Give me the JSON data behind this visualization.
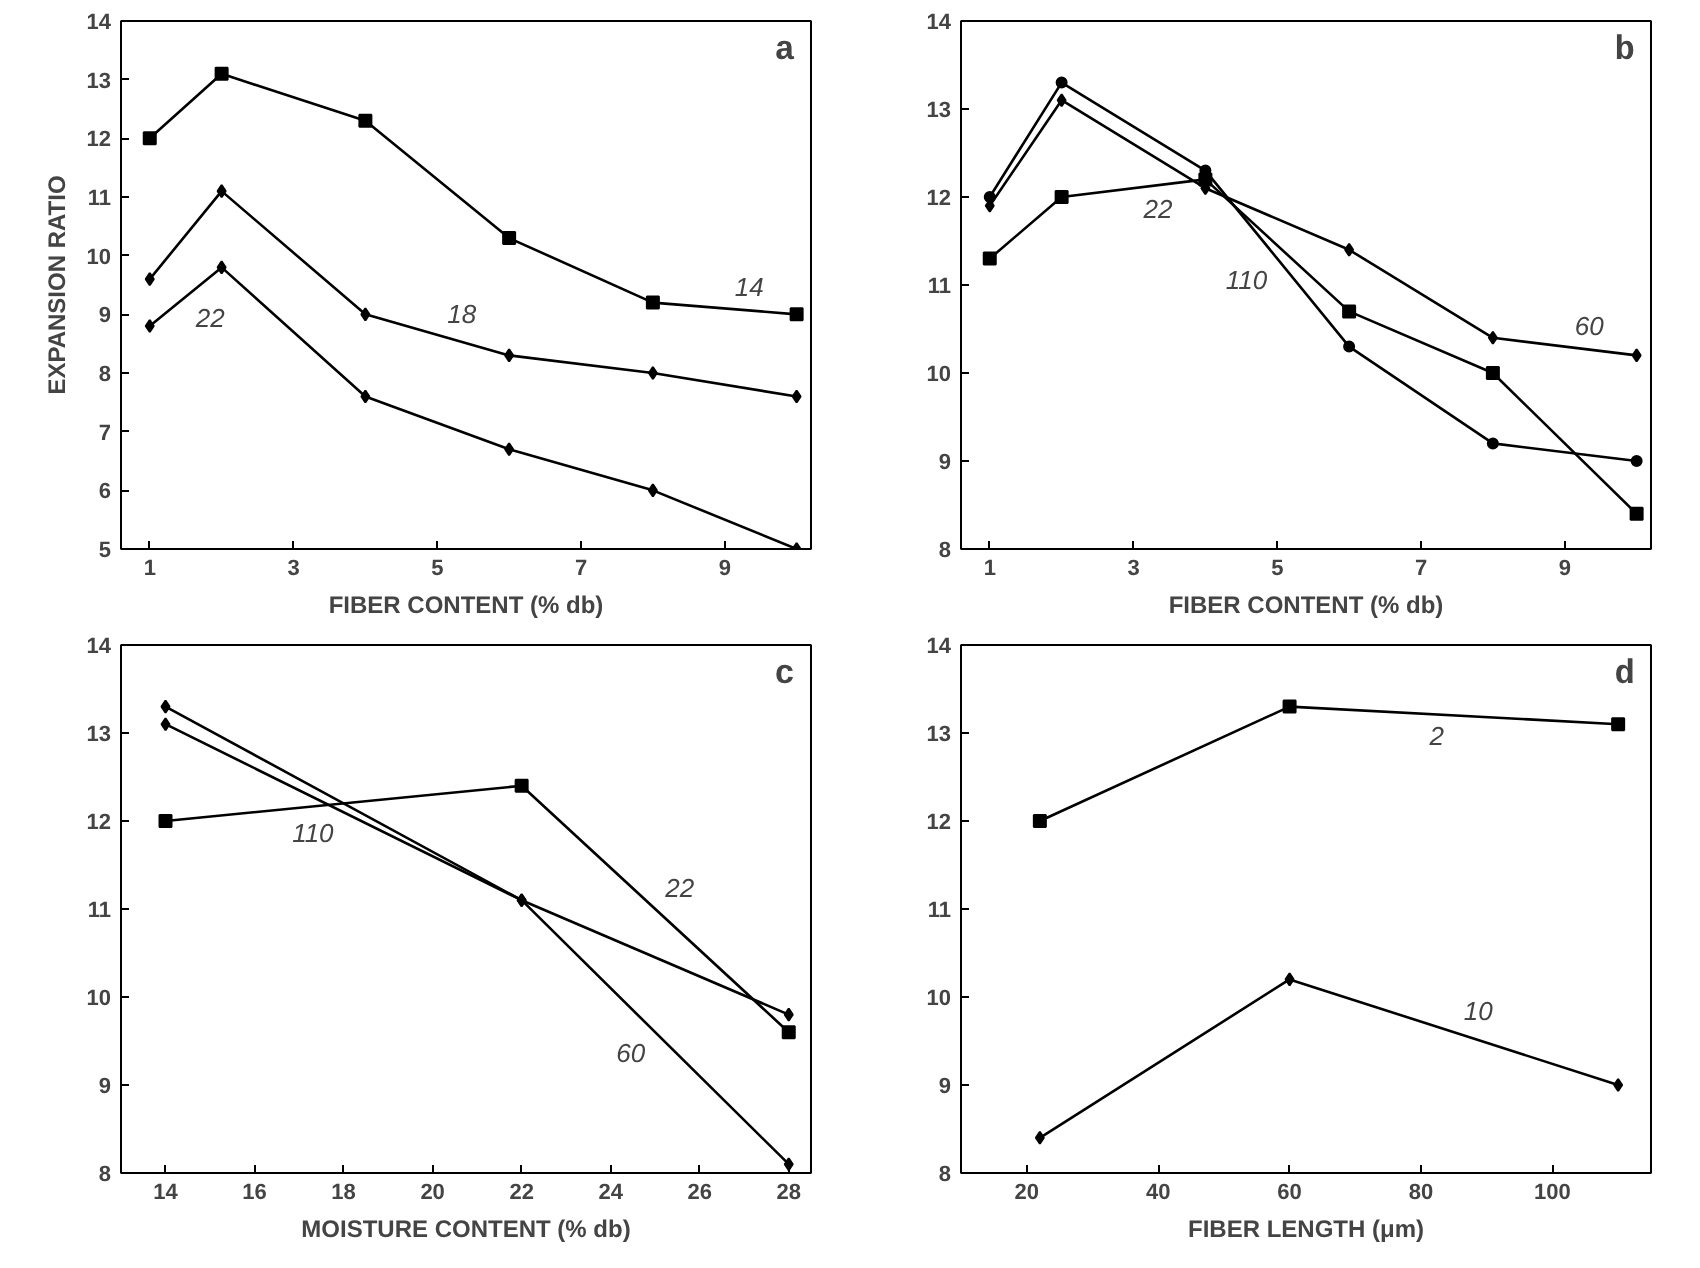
{
  "chart_data": [
    {
      "type": "line",
      "xlabel": "FIBER CONTENT (% db)",
      "ylabel": "EXPANSION RATIO",
      "annotations": [
        "a"
      ],
      "x": [
        1,
        2,
        4,
        6,
        8,
        10
      ],
      "xlim": [
        0.6,
        10.2
      ],
      "xticks": [
        1,
        3,
        5,
        7,
        9
      ],
      "ylim": [
        5,
        14
      ],
      "yticks": [
        5,
        6,
        7,
        8,
        9,
        10,
        11,
        12,
        13,
        14
      ],
      "grid": false,
      "legend": false,
      "series": [
        {
          "name": "14",
          "color": "#000000",
          "marker": "square",
          "values": [
            12.0,
            13.1,
            12.3,
            10.3,
            9.2,
            9.0
          ]
        },
        {
          "name": "18",
          "color": "#000000",
          "marker": "diamond",
          "values": [
            9.6,
            11.1,
            9.0,
            8.3,
            8.0,
            7.6
          ]
        },
        {
          "name": "22",
          "color": "#000000",
          "marker": "diamond",
          "values": [
            8.8,
            9.8,
            7.6,
            6.7,
            6.0,
            5.0
          ]
        }
      ]
    },
    {
      "type": "line",
      "xlabel": "FIBER CONTENT (% db)",
      "annotations": [
        "b"
      ],
      "x": [
        1,
        2,
        4,
        6,
        8,
        10
      ],
      "xlim": [
        0.6,
        10.2
      ],
      "xticks": [
        1,
        3,
        5,
        7,
        9
      ],
      "ylim": [
        8,
        14
      ],
      "yticks": [
        8,
        9,
        10,
        11,
        12,
        13,
        14
      ],
      "grid": false,
      "legend": false,
      "series": [
        {
          "name": "22",
          "color": "#000000",
          "marker": "square",
          "values": [
            11.3,
            12.0,
            12.2,
            10.7,
            10.0,
            8.4
          ]
        },
        {
          "name": "60",
          "color": "#000000",
          "marker": "diamond",
          "values": [
            11.9,
            13.1,
            12.1,
            11.4,
            10.4,
            10.2
          ]
        },
        {
          "name": "110",
          "color": "#000000",
          "marker": "circle",
          "values": [
            12.0,
            13.3,
            12.3,
            10.3,
            9.2,
            9.0
          ]
        }
      ]
    },
    {
      "type": "line",
      "xlabel": "MOISTURE CONTENT (% db)",
      "annotations": [
        "c"
      ],
      "x": [
        14,
        22,
        28
      ],
      "xlim": [
        13,
        28.5
      ],
      "xticks": [
        14,
        16,
        18,
        20,
        22,
        24,
        26,
        28
      ],
      "ylim": [
        8,
        14
      ],
      "yticks": [
        8,
        9,
        10,
        11,
        12,
        13,
        14
      ],
      "grid": false,
      "legend": false,
      "series": [
        {
          "name": "22",
          "color": "#000000",
          "marker": "square",
          "values": [
            12.0,
            12.4,
            9.6
          ]
        },
        {
          "name": "110",
          "color": "#000000",
          "marker": "diamond",
          "values": [
            13.1,
            11.1,
            9.8
          ]
        },
        {
          "name": "60",
          "color": "#000000",
          "marker": "diamond",
          "values": [
            13.3,
            11.1,
            8.1
          ]
        }
      ]
    },
    {
      "type": "line",
      "xlabel": "FIBER LENGTH (μm)",
      "annotations": [
        "d"
      ],
      "x": [
        22,
        60,
        110
      ],
      "xlim": [
        10,
        115
      ],
      "xticks": [
        20,
        40,
        60,
        80,
        100
      ],
      "ylim": [
        8,
        14
      ],
      "yticks": [
        8,
        9,
        10,
        11,
        12,
        13,
        14
      ],
      "grid": false,
      "legend": false,
      "series": [
        {
          "name": "2",
          "color": "#000000",
          "marker": "square",
          "values": [
            12.0,
            13.3,
            13.1
          ]
        },
        {
          "name": "10",
          "color": "#000000",
          "marker": "diamond",
          "values": [
            8.4,
            10.2,
            9.0
          ]
        }
      ]
    }
  ]
}
